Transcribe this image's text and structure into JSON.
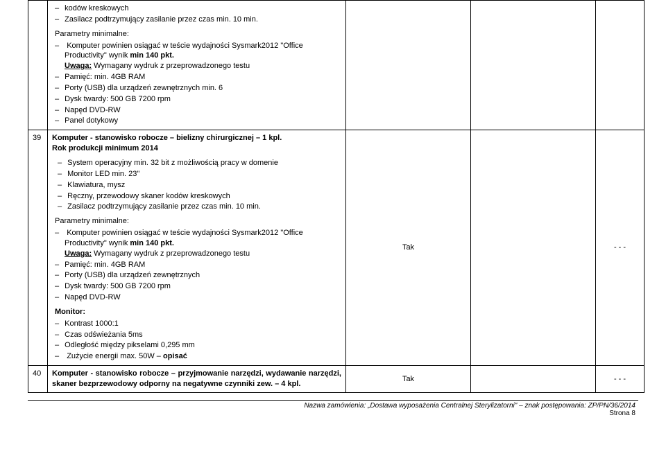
{
  "row38": {
    "list1": [
      "kodów kreskowych",
      "Zasilacz podtrzymujący zasilanie przez czas min. 10 min."
    ],
    "paraTitle": "Parametry minimalne:",
    "list2_item1_a": "Komputer powinien osiągać w teście wydajności Sysmark2012 \"Office Productivity\" wynik ",
    "list2_item1_b": "min 140 pkt.",
    "list2_item1_c_u": "Uwaga:",
    "list2_item1_c": " Wymagany wydruk z przeprowadzonego testu",
    "list2": [
      "Pamięć: min. 4GB RAM",
      "Porty (USB) dla urządzeń zewnętrznych min. 6",
      "Dysk twardy: 500 GB 7200 rpm",
      "Napęd DVD-RW",
      "Panel dotykowy"
    ]
  },
  "row39": {
    "num": "39",
    "title_a": "Komputer - stanowisko robocze – bielizny chirurgicznej – 1 kpl.",
    "title_b": "Rok produkcji minimum 2014",
    "list1": [
      "System operacyjny min. 32 bit z możliwością pracy w domenie",
      "Monitor LED min. 23\"",
      "Klawiatura, mysz",
      "Ręczny, przewodowy skaner kodów kreskowych",
      "Zasilacz podtrzymujący zasilanie przez czas min. 10 min."
    ],
    "paraTitle": "Parametry minimalne:",
    "list2_item1_a": "Komputer powinien osiągać w teście wydajności Sysmark2012 \"Office Productivity\" wynik ",
    "list2_item1_b": "min 140 pkt.",
    "list2_item1_c_u": "Uwaga:",
    "list2_item1_c": " Wymagany wydruk z przeprowadzonego testu",
    "list2": [
      "Pamięć: min. 4GB RAM",
      "Porty (USB) dla urządzeń zewnętrznych",
      "Dysk twardy: 500 GB 7200 rpm",
      "Napęd DVD-RW"
    ],
    "monitorTitle": "Monitor:",
    "list3": [
      "Kontrast 1000:1",
      "Czas odświeżania 5ms",
      "Odległość między pikselami 0,295 mm"
    ],
    "list3_last_a": "Zużycie energii max. 50W – ",
    "list3_last_b": "opisać",
    "req": "Tak",
    "extra": "- - -"
  },
  "row40": {
    "num": "40",
    "title": "Komputer - stanowisko robocze – przyjmowanie narzędzi, wydawanie narzędzi, skaner bezprzewodowy odporny na negatywne czynniki zew. – 4 kpl.",
    "req": "Tak",
    "extra": "- - -"
  },
  "footer": {
    "line1": "Nazwa zamówienia: „Dostawa wyposażenia Centralnej Sterylizatorni\" – znak postępowania: ZP/PN/36/2014",
    "line2": "Strona 8"
  }
}
